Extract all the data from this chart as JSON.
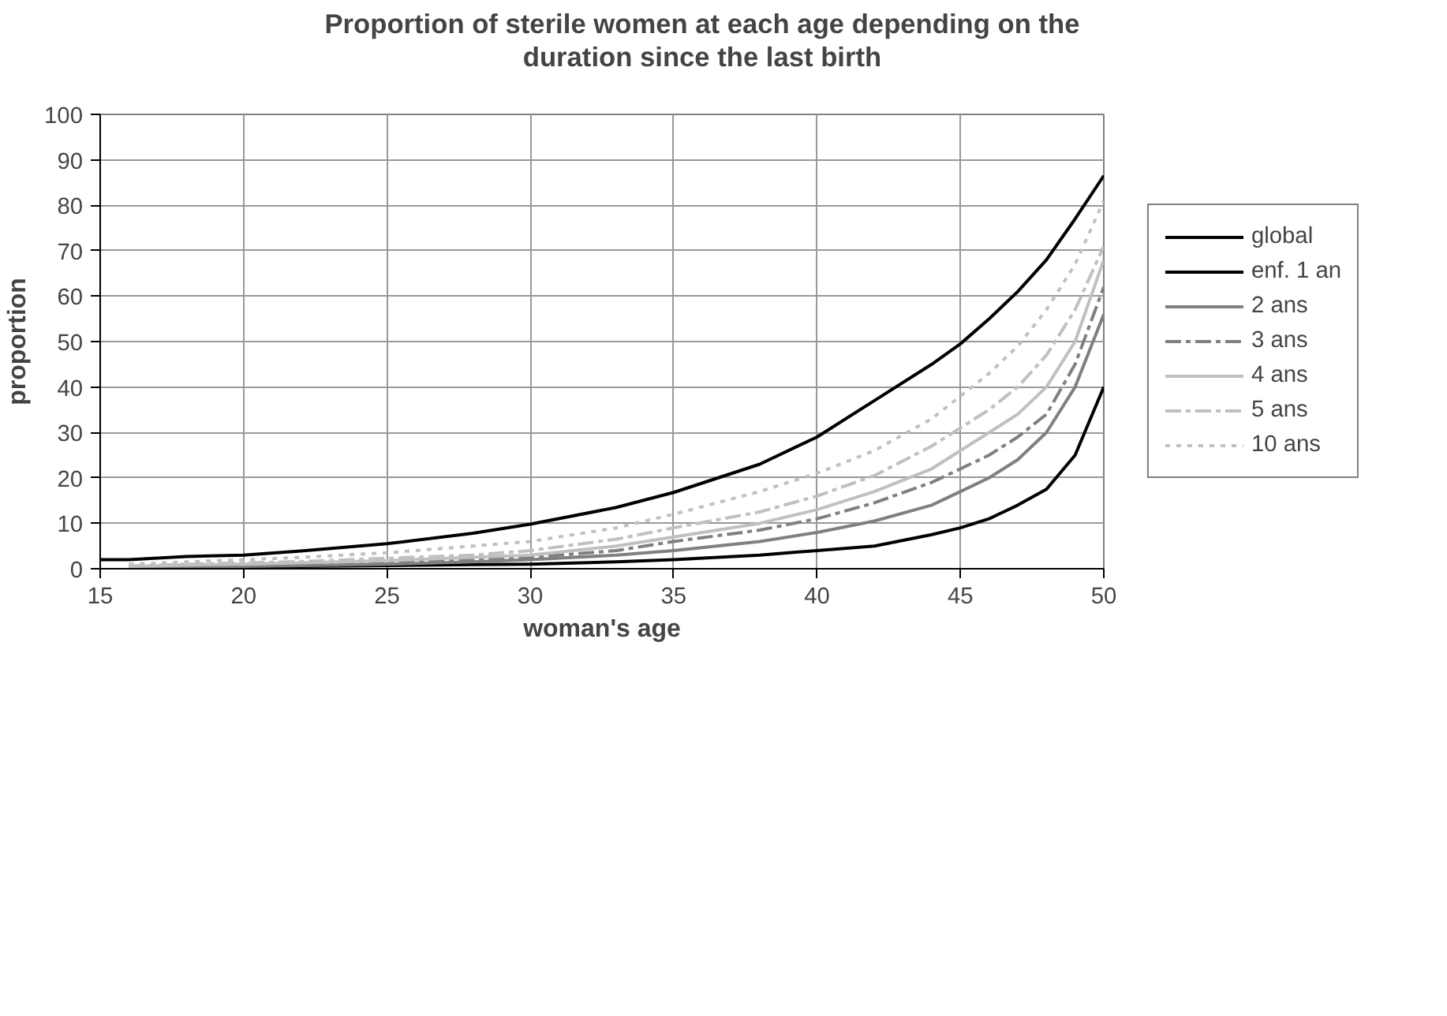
{
  "chart_data": {
    "type": "line",
    "title": "Proportion of sterile women at each age depending on the duration since the last birth",
    "xlabel": "woman's age",
    "ylabel": "proportion",
    "x": [
      15,
      16,
      18,
      20,
      22,
      25,
      28,
      30,
      33,
      35,
      38,
      40,
      42,
      44,
      45,
      46,
      47,
      48,
      49,
      50
    ],
    "xlim": [
      15,
      50
    ],
    "xticks": [
      15,
      20,
      25,
      30,
      35,
      40,
      45,
      50
    ],
    "ylim": [
      0,
      100
    ],
    "yticks": [
      0,
      10,
      20,
      30,
      40,
      50,
      60,
      70,
      80,
      90,
      100
    ],
    "grid": true,
    "legend": "right",
    "marker": "none",
    "series": [
      {
        "name": "global",
        "color": "#000000",
        "line_style": "solid",
        "values": [
          2,
          2,
          2.7,
          3,
          3.9,
          5.5,
          7.8,
          9.8,
          13.5,
          16.8,
          23,
          29,
          37,
          45,
          49.5,
          55,
          61,
          68,
          77,
          86.5
        ]
      },
      {
        "name": "enf. 1 an",
        "color": "#000000",
        "line_style": "solid",
        "values": [
          null,
          0.2,
          0.3,
          0.4,
          0.5,
          0.7,
          0.9,
          1,
          1.5,
          2,
          3,
          4,
          5,
          7.5,
          9,
          11,
          14,
          17.5,
          25,
          40
        ]
      },
      {
        "name": "2 ans",
        "color": "#808080",
        "line_style": "solid",
        "values": [
          null,
          0.3,
          0.4,
          0.5,
          0.7,
          1,
          1.5,
          2,
          3,
          4,
          6,
          8,
          10.5,
          14,
          17,
          20,
          24,
          30,
          40,
          56
        ]
      },
      {
        "name": "3 ans",
        "color": "#808080",
        "line_style": "dashed",
        "values": [
          null,
          0.4,
          0.6,
          0.8,
          1,
          1.5,
          2,
          2.5,
          4,
          6,
          8.5,
          11,
          14.5,
          19,
          22,
          25,
          29,
          34,
          45,
          62
        ]
      },
      {
        "name": "4 ans",
        "color": "#c0c0c0",
        "line_style": "solid",
        "values": [
          null,
          0.5,
          0.8,
          1,
          1.3,
          1.8,
          2.5,
          3,
          5,
          7,
          10,
          13,
          17,
          22,
          26,
          30,
          34,
          40,
          50,
          68
        ]
      },
      {
        "name": "5 ans",
        "color": "#c0c0c0",
        "line_style": "dashed",
        "values": [
          null,
          0.6,
          1,
          1.3,
          1.6,
          2.3,
          3,
          4,
          6.5,
          9,
          12.5,
          16,
          20.5,
          27,
          31,
          35,
          40,
          47,
          57,
          71
        ]
      },
      {
        "name": "10 ans",
        "color": "#c0c0c0",
        "line_style": "dotted",
        "values": [
          null,
          1,
          1.5,
          2,
          2.5,
          3.5,
          5,
          6,
          9,
          12,
          17,
          21,
          26,
          33,
          38,
          43,
          49,
          57,
          67,
          81
        ]
      }
    ]
  }
}
